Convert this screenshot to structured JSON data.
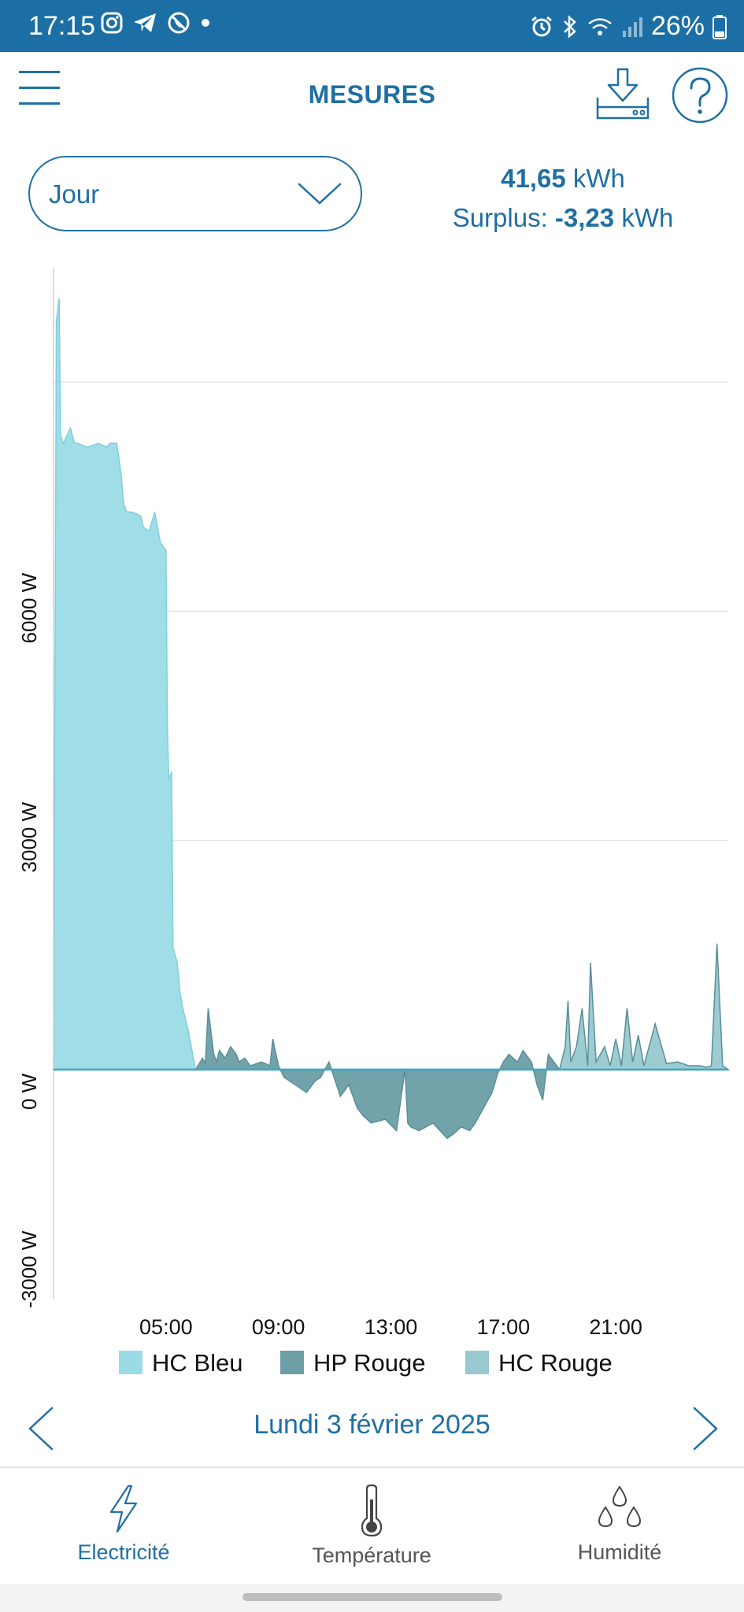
{
  "status_bar": {
    "time": "17:15",
    "battery": "26%",
    "icons": [
      "instagram-icon",
      "telegram-icon",
      "blocked-call-icon",
      "dot-icon",
      "alarm-icon",
      "bluetooth-icon",
      "wifi-icon",
      "signal-icon",
      "battery-icon"
    ]
  },
  "header": {
    "title": "MESURES",
    "icons": [
      "menu-icon",
      "download-icon",
      "help-icon"
    ]
  },
  "period_select": {
    "value": "Jour"
  },
  "summary": {
    "energy_value": "41,65",
    "energy_unit": "kWh",
    "surplus_label": "Surplus:",
    "surplus_value": "-3,23",
    "surplus_unit": "kWh"
  },
  "chart_data": {
    "type": "area",
    "x_unit": "hours",
    "x_range": [
      1,
      25
    ],
    "ylim": [
      -3000,
      10500
    ],
    "yticks": [
      -3000,
      0,
      3000,
      6000
    ],
    "ytick_labels": [
      "-3000 W",
      "0 W",
      "3000 W",
      "6000 W"
    ],
    "xticks": [
      5,
      9,
      13,
      17,
      21
    ],
    "xtick_labels": [
      "05:00",
      "09:00",
      "13:00",
      "17:00",
      "21:00"
    ],
    "grid": true,
    "legend_placement": "bottom",
    "colors": {
      "hc_bleu": "#9adbe6",
      "hp_rouge": "#6b9ea5",
      "hc_rouge": "#98c8d0",
      "baseline": "#3aa7c8"
    },
    "series": [
      {
        "name": "HC Bleu",
        "x": [
          1.0,
          1.1,
          1.2,
          1.25,
          1.35,
          1.6,
          1.75,
          1.85,
          2.2,
          2.6,
          2.9,
          3.0,
          3.25,
          3.4,
          3.5,
          3.6,
          3.8,
          4.1,
          4.2,
          4.4,
          4.6,
          4.8,
          5.0,
          5.05,
          5.1,
          5.2,
          5.25,
          5.4,
          5.5,
          5.6,
          5.8,
          6.0,
          6.05
        ],
        "y": [
          0,
          9800,
          10100,
          8300,
          8200,
          8400,
          8200,
          8200,
          8150,
          8200,
          8150,
          8200,
          8200,
          7800,
          7400,
          7300,
          7300,
          7250,
          7100,
          7050,
          7300,
          6900,
          6800,
          4500,
          3800,
          3900,
          1600,
          1400,
          1000,
          800,
          500,
          100,
          0
        ]
      },
      {
        "name": "HP Rouge",
        "x": [
          6.05,
          6.3,
          6.4,
          6.5,
          6.7,
          6.8,
          6.9,
          7.1,
          7.3,
          7.5,
          7.6,
          7.8,
          8.0,
          8.4,
          8.7,
          8.8,
          9.0,
          9.2,
          9.6,
          10.0,
          10.3,
          10.5,
          10.8,
          11.2,
          11.5,
          11.8,
          12.0,
          12.3,
          12.8,
          13.2,
          13.5,
          13.6,
          13.7,
          14.0,
          14.5,
          15.0,
          15.2,
          15.5,
          15.8,
          16.0,
          16.3,
          16.6,
          16.8,
          17.0,
          17.2,
          17.5,
          17.7,
          18.0,
          18.2,
          18.4,
          18.6,
          18.8,
          19.0
        ],
        "y": [
          0,
          150,
          80,
          800,
          200,
          100,
          250,
          150,
          300,
          200,
          100,
          150,
          50,
          100,
          50,
          400,
          50,
          -100,
          -200,
          -300,
          -150,
          -100,
          100,
          -350,
          -200,
          -500,
          -600,
          -700,
          -650,
          -800,
          0,
          -700,
          -750,
          -800,
          -700,
          -900,
          -850,
          -750,
          -800,
          -700,
          -500,
          -300,
          -50,
          100,
          200,
          100,
          250,
          100,
          -200,
          -400,
          200,
          100,
          0
        ]
      },
      {
        "name": "HC Rouge",
        "x": [
          19.0,
          19.2,
          19.3,
          19.4,
          19.6,
          19.8,
          20.0,
          20.1,
          20.3,
          20.6,
          20.8,
          21.0,
          21.2,
          21.4,
          21.6,
          21.8,
          22.0,
          22.4,
          22.8,
          23.2,
          23.6,
          24.0,
          24.2,
          24.4,
          24.6,
          24.8,
          25.0
        ],
        "y": [
          0,
          300,
          900,
          100,
          300,
          800,
          50,
          1400,
          100,
          300,
          50,
          400,
          50,
          800,
          100,
          450,
          50,
          600,
          80,
          100,
          50,
          50,
          30,
          50,
          1650,
          50,
          0
        ]
      }
    ]
  },
  "date_nav": {
    "date_label": "Lundi 3 février 2025"
  },
  "bottom_nav": {
    "items": [
      {
        "label": "Electricité",
        "icon": "lightning-icon"
      },
      {
        "label": "Température",
        "icon": "thermometer-icon"
      },
      {
        "label": "Humidité",
        "icon": "droplets-icon"
      }
    ]
  }
}
